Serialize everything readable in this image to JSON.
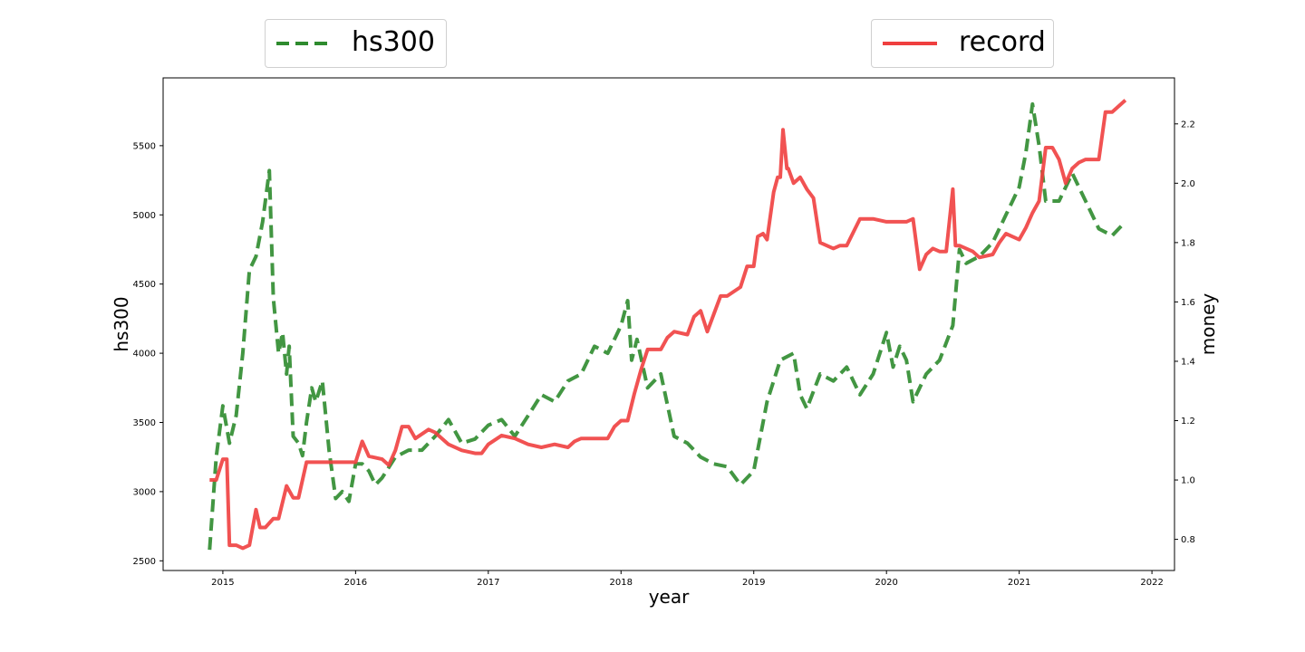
{
  "chart_data": {
    "type": "line",
    "xlabel": "year",
    "ylabel_left": "hs300",
    "ylabel_right": "money",
    "xlim": [
      2014.55,
      2022.17
    ],
    "ylim_left": [
      2430,
      5990
    ],
    "ylim_right": [
      0.695,
      2.355
    ],
    "x_ticks": [
      2015,
      2016,
      2017,
      2018,
      2019,
      2020,
      2021,
      2022
    ],
    "y_left_ticks": [
      2500,
      3000,
      3500,
      4000,
      4500,
      5000,
      5500
    ],
    "y_right_ticks": [
      0.8,
      1.0,
      1.2,
      1.4,
      1.6,
      1.8,
      2.0,
      2.2
    ],
    "legend_position": "above plot",
    "series": [
      {
        "name": "hs300",
        "axis": "left",
        "style": "dashed",
        "color": "#2e8b2e",
        "x": [
          2014.9,
          2014.95,
          2015.0,
          2015.05,
          2015.1,
          2015.15,
          2015.2,
          2015.25,
          2015.3,
          2015.35,
          2015.38,
          2015.42,
          2015.45,
          2015.48,
          2015.5,
          2015.53,
          2015.57,
          2015.6,
          2015.63,
          2015.67,
          2015.7,
          2015.75,
          2015.8,
          2015.85,
          2015.9,
          2015.95,
          2016.0,
          2016.05,
          2016.1,
          2016.15,
          2016.2,
          2016.3,
          2016.4,
          2016.5,
          2016.6,
          2016.7,
          2016.8,
          2016.9,
          2017.0,
          2017.1,
          2017.2,
          2017.3,
          2017.4,
          2017.5,
          2017.6,
          2017.7,
          2017.8,
          2017.9,
          2018.0,
          2018.05,
          2018.08,
          2018.12,
          2018.2,
          2018.3,
          2018.4,
          2018.5,
          2018.6,
          2018.7,
          2018.8,
          2018.9,
          2019.0,
          2019.1,
          2019.2,
          2019.3,
          2019.35,
          2019.4,
          2019.5,
          2019.6,
          2019.7,
          2019.8,
          2019.9,
          2020.0,
          2020.05,
          2020.1,
          2020.15,
          2020.2,
          2020.3,
          2020.4,
          2020.5,
          2020.55,
          2020.6,
          2020.7,
          2020.8,
          2020.9,
          2021.0,
          2021.05,
          2021.1,
          2021.15,
          2021.2,
          2021.3,
          2021.4,
          2021.5,
          2021.6,
          2021.7,
          2021.8
        ],
        "values": [
          2580,
          3250,
          3620,
          3350,
          3550,
          4000,
          4600,
          4700,
          4950,
          5320,
          4400,
          4000,
          4150,
          3850,
          4050,
          3400,
          3350,
          3260,
          3500,
          3750,
          3650,
          3800,
          3300,
          2950,
          3000,
          2930,
          3200,
          3200,
          3150,
          3050,
          3100,
          3250,
          3300,
          3300,
          3400,
          3520,
          3350,
          3380,
          3480,
          3520,
          3400,
          3550,
          3700,
          3650,
          3800,
          3850,
          4050,
          4000,
          4200,
          4380,
          3950,
          4100,
          3750,
          3850,
          3400,
          3350,
          3250,
          3200,
          3180,
          3050,
          3150,
          3650,
          3950,
          4000,
          3700,
          3600,
          3850,
          3800,
          3900,
          3700,
          3850,
          4150,
          3900,
          4050,
          3950,
          3650,
          3850,
          3950,
          4200,
          4750,
          4650,
          4700,
          4800,
          5000,
          5200,
          5450,
          5800,
          5500,
          5100,
          5100,
          5300,
          5100,
          4900,
          4850,
          4950
        ]
      },
      {
        "name": "record",
        "axis": "right",
        "style": "solid",
        "color": "#ef3f3f",
        "x": [
          2014.9,
          2014.95,
          2015.0,
          2015.03,
          2015.05,
          2015.1,
          2015.15,
          2015.2,
          2015.25,
          2015.28,
          2015.32,
          2015.38,
          2015.42,
          2015.48,
          2015.53,
          2015.57,
          2015.63,
          2015.68,
          2015.73,
          2015.8,
          2015.9,
          2016.0,
          2016.05,
          2016.1,
          2016.2,
          2016.25,
          2016.3,
          2016.35,
          2016.4,
          2016.45,
          2016.55,
          2016.6,
          2016.7,
          2016.8,
          2016.9,
          2016.95,
          2017.0,
          2017.1,
          2017.2,
          2017.3,
          2017.4,
          2017.5,
          2017.6,
          2017.65,
          2017.7,
          2017.8,
          2017.9,
          2017.95,
          2018.0,
          2018.05,
          2018.1,
          2018.15,
          2018.2,
          2018.3,
          2018.35,
          2018.4,
          2018.5,
          2018.55,
          2018.6,
          2018.65,
          2018.7,
          2018.75,
          2018.8,
          2018.9,
          2018.95,
          2019.0,
          2019.03,
          2019.07,
          2019.1,
          2019.15,
          2019.18,
          2019.2,
          2019.22,
          2019.25,
          2019.26,
          2019.3,
          2019.35,
          2019.4,
          2019.45,
          2019.5,
          2019.55,
          2019.6,
          2019.65,
          2019.7,
          2019.8,
          2019.9,
          2020.0,
          2020.15,
          2020.2,
          2020.25,
          2020.3,
          2020.35,
          2020.4,
          2020.45,
          2020.5,
          2020.52,
          2020.55,
          2020.6,
          2020.65,
          2020.7,
          2020.8,
          2020.85,
          2020.9,
          2020.95,
          2021.0,
          2021.05,
          2021.1,
          2021.15,
          2021.2,
          2021.25,
          2021.3,
          2021.35,
          2021.4,
          2021.45,
          2021.5,
          2021.6,
          2021.65,
          2021.7,
          2021.8
        ],
        "values": [
          1.0,
          1.0,
          1.07,
          1.07,
          0.78,
          0.78,
          0.77,
          0.78,
          0.9,
          0.84,
          0.84,
          0.87,
          0.87,
          0.98,
          0.94,
          0.94,
          1.06,
          1.06,
          1.06,
          1.06,
          1.06,
          1.06,
          1.13,
          1.08,
          1.07,
          1.05,
          1.1,
          1.18,
          1.18,
          1.14,
          1.17,
          1.16,
          1.12,
          1.1,
          1.09,
          1.09,
          1.12,
          1.15,
          1.14,
          1.12,
          1.11,
          1.12,
          1.11,
          1.13,
          1.14,
          1.14,
          1.14,
          1.18,
          1.2,
          1.2,
          1.29,
          1.37,
          1.44,
          1.44,
          1.48,
          1.5,
          1.49,
          1.55,
          1.57,
          1.5,
          1.56,
          1.62,
          1.62,
          1.65,
          1.72,
          1.72,
          1.82,
          1.83,
          1.81,
          1.97,
          2.02,
          2.02,
          2.18,
          2.05,
          2.05,
          2.0,
          2.02,
          1.98,
          1.95,
          1.8,
          1.79,
          1.78,
          1.79,
          1.79,
          1.88,
          1.88,
          1.87,
          1.87,
          1.88,
          1.71,
          1.76,
          1.78,
          1.77,
          1.77,
          1.98,
          1.79,
          1.79,
          1.78,
          1.77,
          1.75,
          1.76,
          1.8,
          1.83,
          1.82,
          1.81,
          1.85,
          1.9,
          1.94,
          2.12,
          2.12,
          2.08,
          2.0,
          2.05,
          2.07,
          2.08,
          2.08,
          2.24,
          2.24,
          2.28
        ]
      }
    ]
  }
}
